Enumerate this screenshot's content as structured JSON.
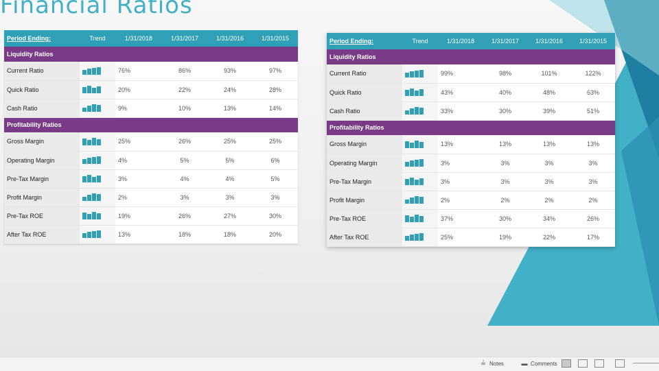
{
  "title": "Financial Ratios",
  "colors": {
    "header": "#2fa0b6",
    "section": "#7a3b86",
    "accent": "#44b0c6",
    "spark": "#2fa0b6"
  },
  "left_table": {
    "header": {
      "period": "Period Ending:",
      "trend": "Trend",
      "years": [
        "1/31/2018",
        "1/31/2017",
        "1/31/2016",
        "1/31/2015"
      ]
    },
    "sections": [
      {
        "title": "Liquidity Ratios",
        "rows": [
          {
            "label": "Current Ratio",
            "values": [
              "76%",
              "86%",
              "93%",
              "97%"
            ]
          },
          {
            "label": "Quick Ratio",
            "values": [
              "20%",
              "22%",
              "24%",
              "28%"
            ]
          },
          {
            "label": "Cash Ratio",
            "values": [
              "9%",
              "10%",
              "13%",
              "14%"
            ]
          }
        ]
      },
      {
        "title": "Profitability Ratios",
        "rows": [
          {
            "label": "Gross Margin",
            "values": [
              "25%",
              "26%",
              "25%",
              "25%"
            ]
          },
          {
            "label": "Operating Margin",
            "values": [
              "4%",
              "5%",
              "5%",
              "6%"
            ]
          },
          {
            "label": "Pre-Tax Margin",
            "values": [
              "3%",
              "4%",
              "4%",
              "5%"
            ]
          },
          {
            "label": "Profit Margin",
            "values": [
              "2%",
              "3%",
              "3%",
              "3%"
            ]
          },
          {
            "label": "Pre-Tax ROE",
            "values": [
              "19%",
              "26%",
              "27%",
              "30%"
            ]
          },
          {
            "label": "After Tax ROE",
            "values": [
              "13%",
              "18%",
              "18%",
              "20%"
            ]
          }
        ]
      }
    ]
  },
  "right_table": {
    "header": {
      "period": "Period Ending:",
      "trend": "Trend",
      "years": [
        "1/31/2018",
        "1/31/2017",
        "1/31/2016",
        "1/31/2015"
      ]
    },
    "sections": [
      {
        "title": "Liquidity Ratios",
        "rows": [
          {
            "label": "Current Ratio",
            "values": [
              "99%",
              "98%",
              "101%",
              "122%"
            ]
          },
          {
            "label": "Quick Ratio",
            "values": [
              "43%",
              "40%",
              "48%",
              "63%"
            ]
          },
          {
            "label": "Cash Ratio",
            "values": [
              "33%",
              "30%",
              "39%",
              "51%"
            ]
          }
        ]
      },
      {
        "title": "Profitability Ratios",
        "rows": [
          {
            "label": "Gross Margin",
            "values": [
              "13%",
              "13%",
              "13%",
              "13%"
            ]
          },
          {
            "label": "Operating Margin",
            "values": [
              "3%",
              "3%",
              "3%",
              "3%"
            ]
          },
          {
            "label": "Pre-Tax Margin",
            "values": [
              "3%",
              "3%",
              "3%",
              "3%"
            ]
          },
          {
            "label": "Profit Margin",
            "values": [
              "2%",
              "2%",
              "2%",
              "2%"
            ]
          },
          {
            "label": "Pre-Tax ROE",
            "values": [
              "37%",
              "30%",
              "34%",
              "26%"
            ]
          },
          {
            "label": "After Tax ROE",
            "values": [
              "25%",
              "19%",
              "22%",
              "17%"
            ]
          }
        ]
      }
    ]
  },
  "statusbar": {
    "notes": "Notes",
    "comments": "Comments",
    "notes_icon": "notes-icon",
    "comments_icon": "comments-icon"
  }
}
